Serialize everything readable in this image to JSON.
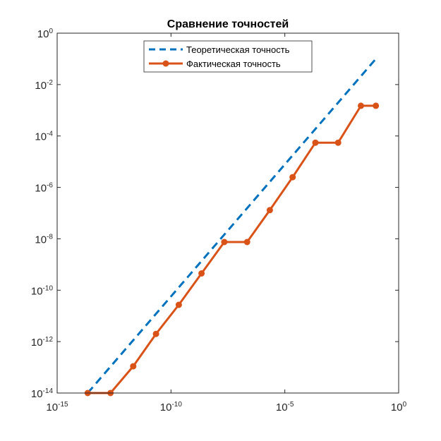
{
  "chart_data": {
    "type": "line",
    "title": "Сравнение точностей",
    "xscale": "log",
    "yscale": "log",
    "xlim": [
      1e-15,
      1
    ],
    "ylim": [
      1e-14,
      1
    ],
    "grid": false,
    "legend_position": "top-center",
    "x_ticks": [
      {
        "base": "10",
        "exp": "-15",
        "value": 1e-15
      },
      {
        "base": "10",
        "exp": "-10",
        "value": 1e-10
      },
      {
        "base": "10",
        "exp": "-5",
        "value": 1e-05
      },
      {
        "base": "10",
        "exp": "0",
        "value": 1
      }
    ],
    "y_ticks": [
      {
        "base": "10",
        "exp": "0",
        "value": 1
      },
      {
        "base": "10",
        "exp": "-2",
        "value": 0.01
      },
      {
        "base": "10",
        "exp": "-4",
        "value": 0.0001
      },
      {
        "base": "10",
        "exp": "-6",
        "value": 1e-06
      },
      {
        "base": "10",
        "exp": "-8",
        "value": 1e-08
      },
      {
        "base": "10",
        "exp": "-10",
        "value": 1e-10
      },
      {
        "base": "10",
        "exp": "-12",
        "value": 1e-12
      },
      {
        "base": "10",
        "exp": "-14",
        "value": 1e-14
      }
    ],
    "series": [
      {
        "name": "Теоретическая точность",
        "color": "#0072BD",
        "style": "dashed",
        "marker": "none",
        "x": [
          2.2e-14,
          0.1
        ],
        "y": [
          1e-14,
          0.1
        ]
      },
      {
        "name": "Фактическая точность",
        "color": "#D95319",
        "style": "solid",
        "marker": "circle",
        "x": [
          2.2e-14,
          2.2e-13,
          2.2e-12,
          2.2e-11,
          2.2e-10,
          2.2e-09,
          2.2e-08,
          2.2e-07,
          2.2e-06,
          2.2e-05,
          0.00022,
          0.0022,
          0.022,
          0.1
        ],
        "y": [
          1e-14,
          1e-14,
          1.1e-13,
          2e-12,
          2.7e-11,
          4.5e-10,
          7.5e-09,
          7.5e-09,
          1.3e-07,
          2.5e-06,
          5.5e-05,
          5.5e-05,
          0.0015,
          0.0015
        ]
      }
    ]
  },
  "colors": {
    "axis": "#262626",
    "background": "#ffffff"
  }
}
